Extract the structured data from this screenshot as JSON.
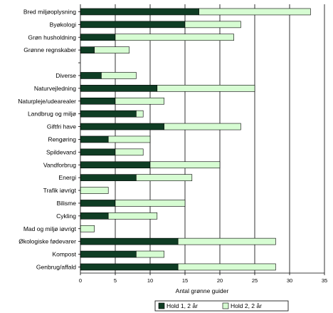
{
  "chart_data": {
    "type": "bar",
    "orientation": "horizontal",
    "stacked": true,
    "categories": [
      "Bred miljøoplysning",
      "Byøkologi",
      "Grøn husholdning",
      "Grønne regnskaber",
      "",
      "Diverse",
      "Naturvejledning",
      "Naturpleje/udearealer",
      "Landbrug og miljø",
      "Giftfri have",
      "Rengøring",
      "Spildevand",
      "Vandforbrug",
      "Energi",
      "Trafik iøvrigt",
      "Bilisme",
      "Cykling",
      "Mad og miljø iøvrigt",
      "Økologiske fødevarer",
      "Kompost",
      "Genbrug/affald"
    ],
    "series": [
      {
        "name": "Hold 1, 2 år",
        "color": "#0f3d24",
        "values": [
          17,
          15,
          5,
          2,
          0,
          3,
          11,
          5,
          8,
          12,
          4,
          5,
          10,
          8,
          0,
          5,
          4,
          0,
          14,
          8,
          14
        ]
      },
      {
        "name": "Hold 2, 2 år",
        "color": "#d6fcd2",
        "values": [
          16,
          8,
          17,
          5,
          0,
          5,
          14,
          7,
          1,
          11,
          6,
          4,
          10,
          8,
          4,
          10,
          7,
          2,
          14,
          4,
          14
        ]
      }
    ],
    "xlabel": "Antal grønne guider",
    "ylabel": "",
    "xlim": [
      0,
      35
    ],
    "xticks": [
      0,
      5,
      10,
      15,
      20,
      25,
      30,
      35
    ],
    "grid": "vertical",
    "legend": "bottom-right"
  }
}
